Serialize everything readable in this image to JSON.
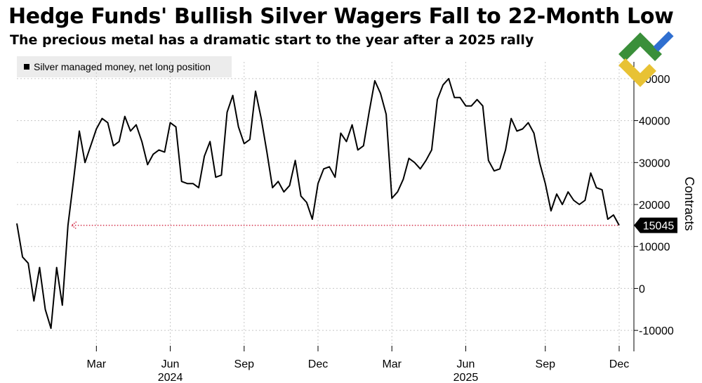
{
  "title": "Hedge Funds' Bullish Silver Wagers Fall to 22-Month Low",
  "subtitle": "The precious metal has a dramatic start to the year after a 2025 rally",
  "colors": {
    "line": "#000000",
    "grid": "#c8c8c8",
    "marker": "#d4304a",
    "legend_bg": "#ececec"
  },
  "logo": {
    "name": "brand-logo-icon"
  },
  "chart_data": {
    "type": "line",
    "title": "Hedge Funds' Bullish Silver Wagers Fall to 22-Month Low",
    "ylabel": "Contracts",
    "ylim": [
      -15000,
      54000
    ],
    "yticks": [
      -10000,
      0,
      10000,
      20000,
      30000,
      40000,
      50000
    ],
    "ytick_labels": [
      "-10000",
      "0",
      "10000",
      "20000",
      "30000",
      "40000",
      "50000"
    ],
    "xticks": [
      {
        "label": "Mar",
        "i": 14
      },
      {
        "label": "Jun",
        "i": 27
      },
      {
        "label": "Sep",
        "i": 40
      },
      {
        "label": "Dec",
        "i": 53
      },
      {
        "label": "Mar",
        "i": 66
      },
      {
        "label": "Jun",
        "i": 79
      },
      {
        "label": "Sep",
        "i": 93
      },
      {
        "label": "Dec",
        "i": 106
      }
    ],
    "year_labels": [
      {
        "label": "2024",
        "i": 27
      },
      {
        "label": "2025",
        "i": 79
      }
    ],
    "series": [
      {
        "name": "Silver managed money, net long position",
        "values": [
          15500,
          7500,
          6000,
          -3000,
          5000,
          -5000,
          -9500,
          5000,
          -4000,
          15000,
          26000,
          37500,
          30000,
          34000,
          38000,
          40500,
          39500,
          34000,
          35000,
          41000,
          37500,
          39000,
          35000,
          29500,
          32000,
          33000,
          32500,
          39500,
          38500,
          25500,
          25000,
          25000,
          24000,
          31500,
          35000,
          26500,
          27000,
          42000,
          46000,
          38500,
          34500,
          35500,
          47000,
          40500,
          32500,
          24000,
          25500,
          23000,
          24500,
          30500,
          22000,
          20500,
          16500,
          25000,
          28500,
          29000,
          26500,
          37000,
          35000,
          39000,
          33000,
          34000,
          42000,
          49500,
          46500,
          41500,
          21500,
          23000,
          26000,
          31000,
          30000,
          28500,
          30500,
          33000,
          45000,
          48500,
          50000,
          45500,
          45500,
          43500,
          43500,
          45000,
          43500,
          30500,
          28000,
          28500,
          33000,
          40500,
          37500,
          38000,
          39500,
          37000,
          30000,
          25000,
          18500,
          22500,
          20000,
          23000,
          21000,
          20000,
          21000,
          27500,
          24000,
          23500,
          16500,
          17500,
          15045
        ]
      }
    ],
    "last_value_label": "15045",
    "reference_line": {
      "value": 15045,
      "style": "dotted"
    }
  }
}
